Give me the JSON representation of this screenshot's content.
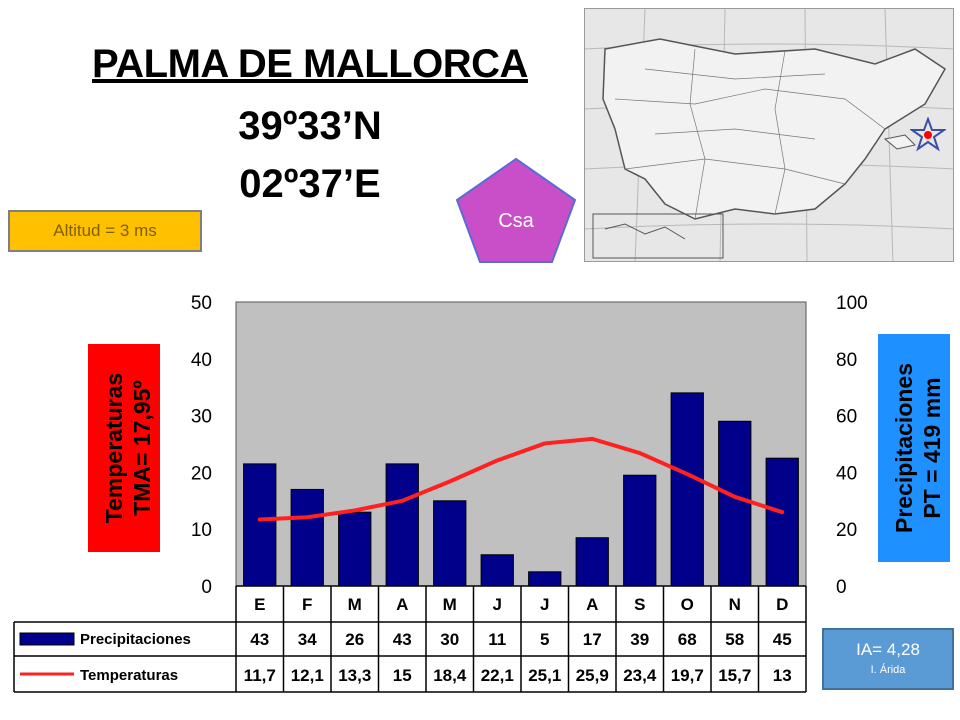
{
  "header": {
    "city": "PALMA DE MALLORCA",
    "latitude": "39º33’N",
    "longitude": "02º37’E"
  },
  "altitude_label": "Altitud = 3 ms",
  "climate_code": "Csa",
  "aridity": {
    "index": "IA= 4,28",
    "class": "I. Árida"
  },
  "colors": {
    "precip_bar": "#00008b",
    "temp_line": "#ff2020",
    "temp_box": "#ff0000",
    "precip_box": "#1e90ff",
    "plot_bg": "#c0c0c0",
    "badge": "#c94fc9",
    "altitude_box": "#ffc000",
    "ia_box": "#5b9bd5",
    "map_marker": "#ff0000"
  },
  "map": {
    "marker_icon": "star-marker-icon"
  },
  "chart_data": {
    "type": "bar",
    "categories": [
      "E",
      "F",
      "M",
      "A",
      "M",
      "J",
      "J",
      "A",
      "S",
      "O",
      "N",
      "D"
    ],
    "series": [
      {
        "name": "Precipitaciones",
        "type": "bar",
        "axis": "right",
        "values": [
          43,
          34,
          26,
          43,
          30,
          11,
          5,
          17,
          39,
          68,
          58,
          45
        ],
        "value_labels": [
          "43",
          "34",
          "26",
          "43",
          "30",
          "11",
          "5",
          "17",
          "39",
          "68",
          "58",
          "45"
        ]
      },
      {
        "name": "Temperaturas",
        "type": "line",
        "axis": "left",
        "values": [
          11.7,
          12.1,
          13.3,
          15,
          18.4,
          22.1,
          25.1,
          25.9,
          23.4,
          19.7,
          15.7,
          13
        ],
        "value_labels": [
          "11,7",
          "12,1",
          "13,3",
          "15",
          "18,4",
          "22,1",
          "25,1",
          "25,9",
          "23,4",
          "19,7",
          "15,7",
          "13"
        ]
      }
    ],
    "y_left": {
      "ylim": [
        0,
        50
      ],
      "ticks": [
        "0",
        "10",
        "20",
        "30",
        "40",
        "50"
      ],
      "label_line1": "Temperaturas",
      "label_line2": "TMA= 17,95º"
    },
    "y_right": {
      "ylim": [
        0,
        100
      ],
      "ticks": [
        "0",
        "20",
        "40",
        "60",
        "80",
        "100"
      ],
      "label_line1": "Precipitaciones",
      "label_line2": "PT = 419 mm"
    },
    "table_row_labels": {
      "precip": "Precipitaciones",
      "temp": "Temperaturas"
    },
    "grid": false
  }
}
